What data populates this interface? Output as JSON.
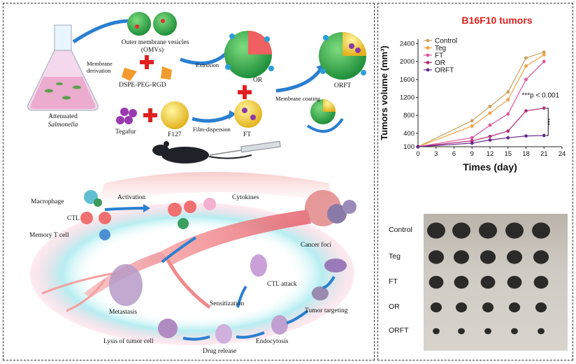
{
  "schematic": {
    "salmonella_top": "Attenuated",
    "salmonella_bottom": "Salmonella",
    "membrane_derivation": "Membrane\nderivation",
    "omv_line1": "Outer membrane vesicles",
    "omv_line2": "(OMVs)",
    "dspe": "DSPE-PEG-RGD",
    "extrusion": "Extrusion",
    "or": "OR",
    "membrane_coating": "Membrane coating",
    "orft": "ORFT",
    "tegafur": "Tegafur",
    "f127": "F127",
    "film_dispersion": "Film-dispersion",
    "ft": "FT",
    "macrophage": "Macrophage",
    "ctl": "CTL",
    "memory_t": "Memory T cell",
    "activation": "Activation",
    "cytokines": "Cytokines",
    "cancer_foci": "Cancer foci",
    "tumor_targeting": "Tumor targeting",
    "endocytosis": "Endocytosis",
    "drug_release": "Drug release",
    "lysis": "Lysis of tumor cell",
    "metastasis": "Metastasis",
    "sensitization": "Sensitization",
    "ctl_attack": "CTL attack"
  },
  "chart_data": {
    "type": "line",
    "title": "B16F10 tumors",
    "xlabel": "Times (day)",
    "ylabel": "Tumors volume (mm³)",
    "x": [
      0,
      9,
      12,
      15,
      18,
      21
    ],
    "xticks": [
      0,
      3,
      6,
      9,
      12,
      15,
      18,
      21,
      24
    ],
    "yticks": [
      100,
      400,
      800,
      1200,
      1600,
      2000,
      2400
    ],
    "ylim": [
      100,
      2500
    ],
    "xlim": [
      0,
      24
    ],
    "series": [
      {
        "name": "Control",
        "color": "#c9a25a",
        "values": [
          100,
          680,
          1000,
          1320,
          2080,
          2210
        ]
      },
      {
        "name": "Teg",
        "color": "#f0a040",
        "values": [
          100,
          560,
          850,
          1150,
          1900,
          2150
        ]
      },
      {
        "name": "FT",
        "color": "#e0559a",
        "values": [
          100,
          300,
          580,
          830,
          1600,
          2000
        ]
      },
      {
        "name": "OR",
        "color": "#b0307a",
        "values": [
          100,
          230,
          330,
          450,
          900,
          960
        ]
      },
      {
        "name": "ORFT",
        "color": "#6a2a8a",
        "values": [
          100,
          180,
          250,
          300,
          340,
          350
        ]
      }
    ],
    "annotation": "***p < 0.001",
    "bracket_label": "***",
    "legend_position": "top-left"
  },
  "photo": {
    "rows": [
      "Control",
      "Teg",
      "FT",
      "OR",
      "ORFT"
    ],
    "tumor_sizes": [
      1.0,
      0.85,
      0.8,
      0.62,
      0.38
    ]
  }
}
